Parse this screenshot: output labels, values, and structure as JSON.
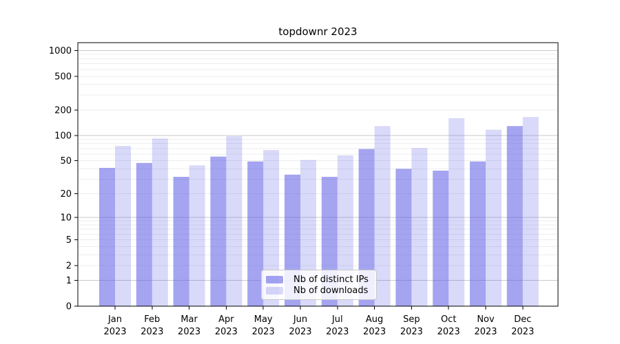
{
  "chart_data": {
    "type": "bar",
    "title": "topdownr 2023",
    "categories": [
      "Jan",
      "Feb",
      "Mar",
      "Apr",
      "May",
      "Jun",
      "Jul",
      "Aug",
      "Sep",
      "Oct",
      "Nov",
      "Dec"
    ],
    "category_year": "2023",
    "series": [
      {
        "name": "Nb of distinct IPs",
        "color": "rgba(90,90,230,0.55)",
        "solid_color": "#a7a7f0",
        "values": [
          41,
          47,
          32,
          56,
          49,
          34,
          32,
          69,
          40,
          38,
          49,
          129
        ]
      },
      {
        "name": "Nb of downloads",
        "color": "rgba(90,90,230,0.23)",
        "solid_color": "#d9d9f7",
        "values": [
          75,
          92,
          44,
          98,
          67,
          51,
          58,
          129,
          71,
          160,
          117,
          165
        ]
      }
    ],
    "y_scale": "log10(value+1)",
    "y_tick_labels": [
      "1000",
      "500",
      "200",
      "100",
      "50",
      "20",
      "10",
      "5",
      "2",
      "1",
      "0"
    ],
    "y_tick_values": [
      1000,
      500,
      200,
      100,
      50,
      20,
      10,
      5,
      2,
      1,
      0
    ],
    "ylim": [
      0,
      1300
    ],
    "grid": true,
    "grid_major_color": "#c9c9c9",
    "grid_minor_color": "#ededed",
    "axis_color": "#000000",
    "legend_position": "bottom-center"
  }
}
